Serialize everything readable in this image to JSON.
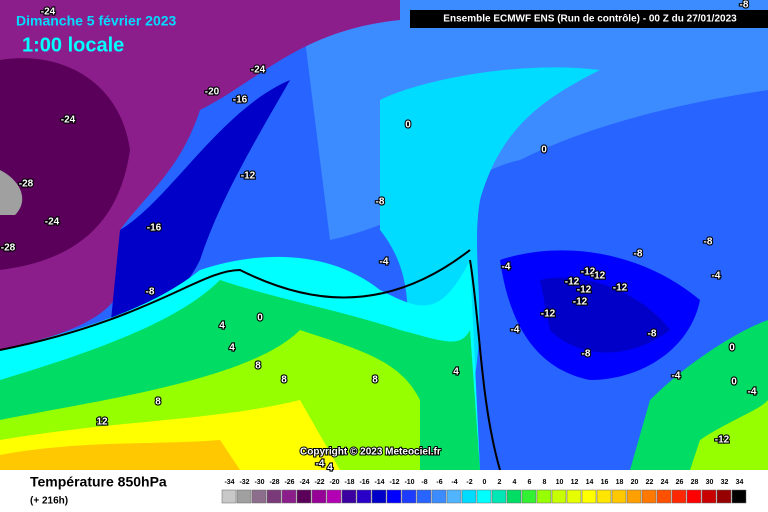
{
  "header": {
    "date": "Dimanche 5 février 2023",
    "time": "1:00 locale",
    "run": "Ensemble ECMWF ENS  (Run de contrôle)  -  00 Z du 27/01/2023",
    "corner": "-8"
  },
  "map": {
    "labels": [
      "-24",
      "-24",
      "-20",
      "-16",
      "-24",
      "-28",
      "-24",
      "-28",
      "-16",
      "-12",
      "-8",
      "-8",
      "0",
      "0",
      "-4",
      "-4",
      "4",
      "4",
      "0",
      "8",
      "8",
      "8",
      "12",
      "8",
      "-4",
      "-12",
      "-12",
      "-12",
      "-12",
      "-12",
      "-12",
      "-8",
      "-12",
      "-8",
      "-8",
      "-4",
      "-8",
      "-4",
      "4",
      "0",
      "0",
      "-4",
      "-12",
      "-4",
      "4"
    ]
  },
  "footer": {
    "title": "Température 850hPa",
    "lead": "(+ 216h)",
    "copyright": "Copyright © 2023 Meteociel.fr"
  },
  "legend": {
    "ticks": [
      -34,
      -32,
      -30,
      -28,
      -26,
      -24,
      -22,
      -20,
      -18,
      -16,
      -14,
      -12,
      -10,
      -8,
      -6,
      -4,
      -2,
      0,
      2,
      4,
      6,
      8,
      10,
      12,
      14,
      16,
      18,
      20,
      22,
      24,
      26,
      28,
      30,
      32,
      34
    ],
    "colors": [
      "#c8c8c8",
      "#a0a0a0",
      "#8c6e8c",
      "#7a3a7a",
      "#8c1e8c",
      "#5a005a",
      "#960096",
      "#b400b4",
      "#3c00a0",
      "#2800c8",
      "#0000c8",
      "#0000ff",
      "#1e3cff",
      "#2864ff",
      "#3c8cff",
      "#50b4ff",
      "#00dcff",
      "#00ffff",
      "#00e6b4",
      "#00dc64",
      "#32f032",
      "#96ff00",
      "#c8ff00",
      "#e6ff00",
      "#ffff00",
      "#ffe600",
      "#ffc800",
      "#ffa000",
      "#ff7800",
      "#ff5000",
      "#ff2800",
      "#ff0000",
      "#c80000",
      "#960000",
      "#000000"
    ]
  }
}
